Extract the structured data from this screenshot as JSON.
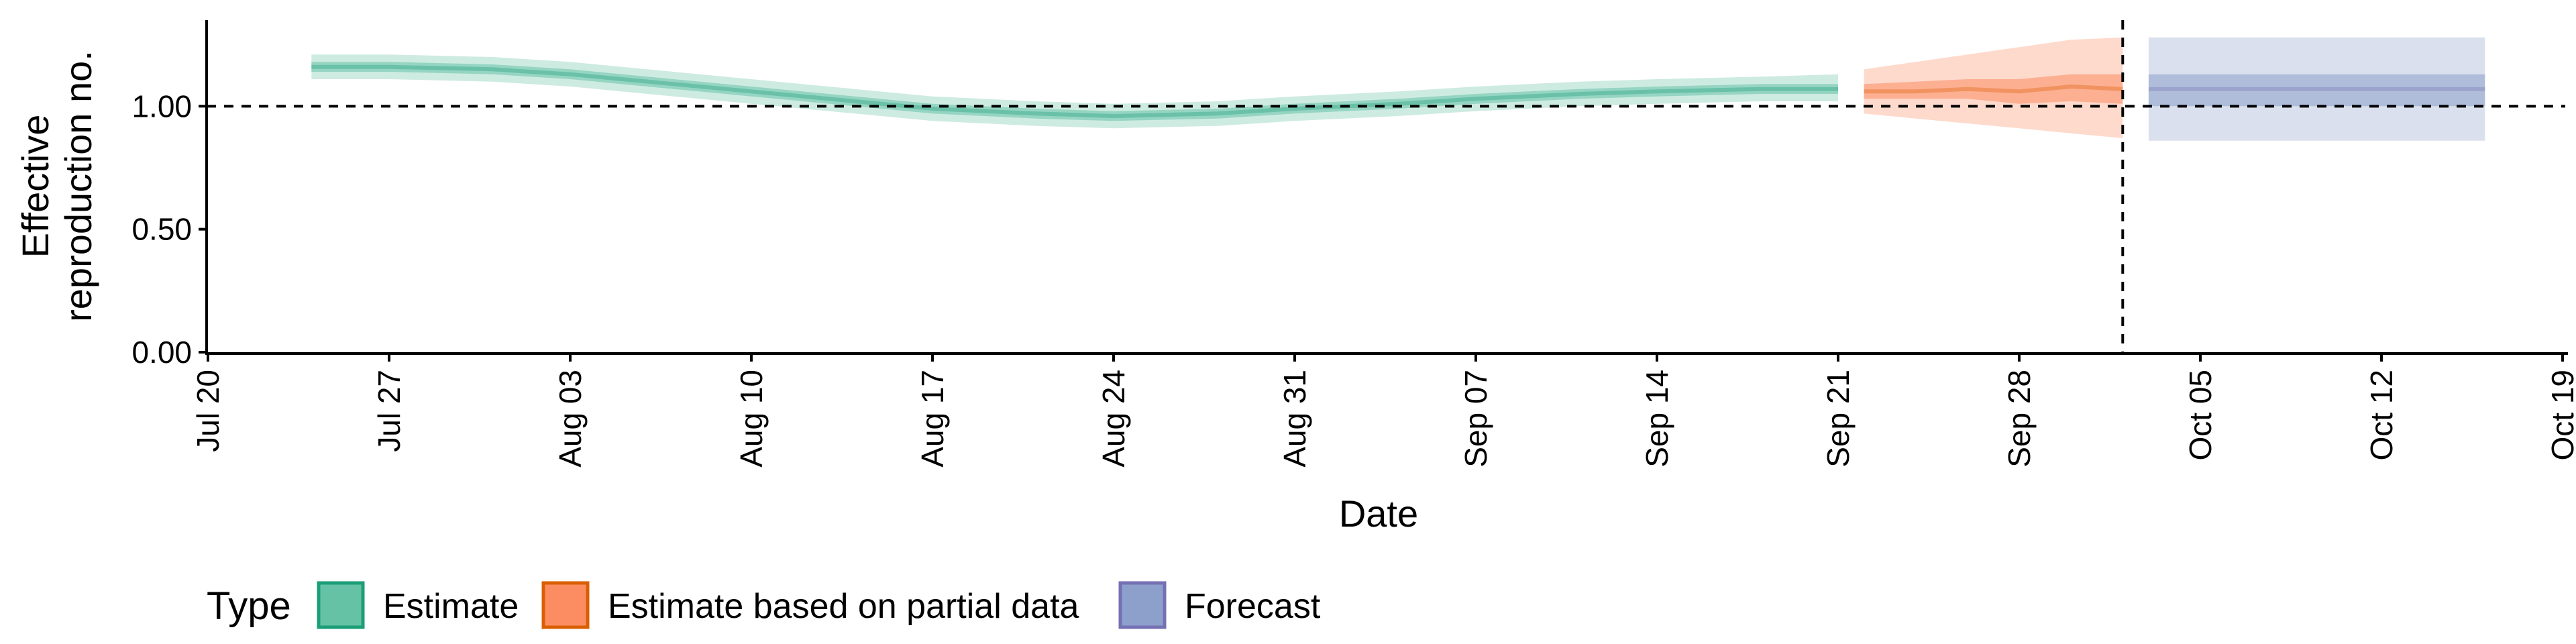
{
  "chart_data": {
    "type": "area",
    "title": "",
    "xlabel": "Date",
    "ylabel_lines": [
      "Effective",
      "reproduction no."
    ],
    "x_axis": {
      "type": "date",
      "range": [
        "2020-07-20",
        "2020-10-19"
      ],
      "ticks": [
        {
          "date": "2020-07-20",
          "label": "Jul 20"
        },
        {
          "date": "2020-07-27",
          "label": "Jul 27"
        },
        {
          "date": "2020-08-03",
          "label": "Aug 03"
        },
        {
          "date": "2020-08-10",
          "label": "Aug 10"
        },
        {
          "date": "2020-08-17",
          "label": "Aug 17"
        },
        {
          "date": "2020-08-24",
          "label": "Aug 24"
        },
        {
          "date": "2020-08-31",
          "label": "Aug 31"
        },
        {
          "date": "2020-09-07",
          "label": "Sep 07"
        },
        {
          "date": "2020-09-14",
          "label": "Sep 14"
        },
        {
          "date": "2020-09-21",
          "label": "Sep 21"
        },
        {
          "date": "2020-09-28",
          "label": "Sep 28"
        },
        {
          "date": "2020-10-05",
          "label": "Oct 05"
        },
        {
          "date": "2020-10-12",
          "label": "Oct 12"
        },
        {
          "date": "2020-10-19",
          "label": "Oct 19"
        }
      ]
    },
    "y_axis": {
      "range": [
        0,
        1.35
      ],
      "ticks": [
        {
          "value": 0,
          "label": "0.00"
        },
        {
          "value": 0.5,
          "label": "0.50"
        },
        {
          "value": 1,
          "label": "1.00"
        }
      ]
    },
    "reference_lines": {
      "horizontal_y": 1.0,
      "vertical_date": "2020-10-02"
    },
    "grid": false,
    "legend": {
      "position": "bottom",
      "title": "Type",
      "items": [
        {
          "label": "Estimate",
          "fill": "#66c2a5",
          "border": "#1b9e77"
        },
        {
          "label": "Estimate based on partial data",
          "fill": "#fc8d62",
          "border": "#d95f02"
        },
        {
          "label": "Forecast",
          "fill": "#8da0cb",
          "border": "#7570b3"
        }
      ]
    },
    "series": [
      {
        "name": "Estimate",
        "color": "#1b9e77",
        "points": [
          {
            "date": "2020-07-24",
            "median": 1.16,
            "lower_50": 1.14,
            "upper_50": 1.18,
            "lower_90": 1.11,
            "upper_90": 1.21
          },
          {
            "date": "2020-07-27",
            "median": 1.16,
            "lower_50": 1.14,
            "upper_50": 1.18,
            "lower_90": 1.11,
            "upper_90": 1.21
          },
          {
            "date": "2020-07-31",
            "median": 1.15,
            "lower_50": 1.13,
            "upper_50": 1.17,
            "lower_90": 1.1,
            "upper_90": 1.2
          },
          {
            "date": "2020-08-03",
            "median": 1.13,
            "lower_50": 1.11,
            "upper_50": 1.15,
            "lower_90": 1.08,
            "upper_90": 1.18
          },
          {
            "date": "2020-08-07",
            "median": 1.09,
            "lower_50": 1.07,
            "upper_50": 1.11,
            "lower_90": 1.04,
            "upper_90": 1.14
          },
          {
            "date": "2020-08-10",
            "median": 1.06,
            "lower_50": 1.04,
            "upper_50": 1.08,
            "lower_90": 1.01,
            "upper_90": 1.11
          },
          {
            "date": "2020-08-14",
            "median": 1.02,
            "lower_50": 1.0,
            "upper_50": 1.04,
            "lower_90": 0.97,
            "upper_90": 1.07
          },
          {
            "date": "2020-08-17",
            "median": 0.99,
            "lower_50": 0.97,
            "upper_50": 1.01,
            "lower_90": 0.94,
            "upper_90": 1.04
          },
          {
            "date": "2020-08-21",
            "median": 0.97,
            "lower_50": 0.95,
            "upper_50": 0.99,
            "lower_90": 0.92,
            "upper_90": 1.02
          },
          {
            "date": "2020-08-24",
            "median": 0.96,
            "lower_50": 0.94,
            "upper_50": 0.98,
            "lower_90": 0.91,
            "upper_90": 1.01
          },
          {
            "date": "2020-08-28",
            "median": 0.97,
            "lower_50": 0.95,
            "upper_50": 0.99,
            "lower_90": 0.92,
            "upper_90": 1.02
          },
          {
            "date": "2020-08-31",
            "median": 0.99,
            "lower_50": 0.97,
            "upper_50": 1.01,
            "lower_90": 0.94,
            "upper_90": 1.04
          },
          {
            "date": "2020-09-04",
            "median": 1.01,
            "lower_50": 0.99,
            "upper_50": 1.03,
            "lower_90": 0.96,
            "upper_90": 1.06
          },
          {
            "date": "2020-09-07",
            "median": 1.03,
            "lower_50": 1.01,
            "upper_50": 1.05,
            "lower_90": 0.98,
            "upper_90": 1.08
          },
          {
            "date": "2020-09-11",
            "median": 1.05,
            "lower_50": 1.03,
            "upper_50": 1.07,
            "lower_90": 1.0,
            "upper_90": 1.1
          },
          {
            "date": "2020-09-14",
            "median": 1.06,
            "lower_50": 1.04,
            "upper_50": 1.08,
            "lower_90": 1.01,
            "upper_90": 1.11
          },
          {
            "date": "2020-09-18",
            "median": 1.07,
            "lower_50": 1.05,
            "upper_50": 1.09,
            "lower_90": 1.02,
            "upper_90": 1.12
          },
          {
            "date": "2020-09-21",
            "median": 1.07,
            "lower_50": 1.05,
            "upper_50": 1.09,
            "lower_90": 1.02,
            "upper_90": 1.13
          }
        ]
      },
      {
        "name": "Estimate based on partial data",
        "color": "#d95f02",
        "points": [
          {
            "date": "2020-09-22",
            "median": 1.06,
            "lower_50": 1.03,
            "upper_50": 1.09,
            "lower_90": 0.97,
            "upper_90": 1.15
          },
          {
            "date": "2020-09-24",
            "median": 1.06,
            "lower_50": 1.03,
            "upper_50": 1.1,
            "lower_90": 0.95,
            "upper_90": 1.18
          },
          {
            "date": "2020-09-26",
            "median": 1.07,
            "lower_50": 1.03,
            "upper_50": 1.11,
            "lower_90": 0.93,
            "upper_90": 1.21
          },
          {
            "date": "2020-09-28",
            "median": 1.06,
            "lower_50": 1.01,
            "upper_50": 1.11,
            "lower_90": 0.91,
            "upper_90": 1.24
          },
          {
            "date": "2020-09-30",
            "median": 1.08,
            "lower_50": 1.02,
            "upper_50": 1.13,
            "lower_90": 0.89,
            "upper_90": 1.27
          },
          {
            "date": "2020-10-02",
            "median": 1.07,
            "lower_50": 1.01,
            "upper_50": 1.13,
            "lower_90": 0.87,
            "upper_90": 1.28
          }
        ]
      },
      {
        "name": "Forecast",
        "color": "#7570b3",
        "points": [
          {
            "date": "2020-10-03",
            "median": 1.07,
            "lower_50": 1.0,
            "upper_50": 1.13,
            "lower_90": 0.86,
            "upper_90": 1.28
          },
          {
            "date": "2020-10-16",
            "median": 1.07,
            "lower_50": 1.0,
            "upper_50": 1.13,
            "lower_90": 0.86,
            "upper_90": 1.28
          }
        ]
      }
    ]
  }
}
